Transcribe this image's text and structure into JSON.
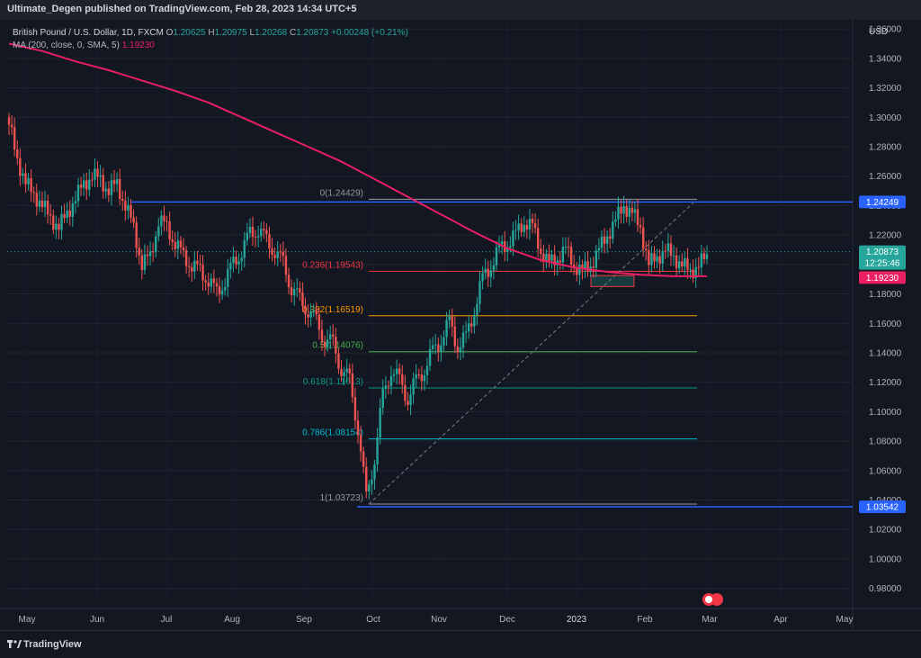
{
  "header": {
    "publisher": "Ultimate_Degen published on TradingView.com, Feb 28, 2023 14:34 UTC+5"
  },
  "legend": {
    "symbol": "British Pound / U.S. Dollar, 1D, FXCM",
    "ohlc": [
      {
        "k": "O",
        "v": "1.20625"
      },
      {
        "k": "H",
        "v": "1.20975"
      },
      {
        "k": "L",
        "v": "1.20268"
      },
      {
        "k": "C",
        "v": "1.20873"
      }
    ],
    "change": "+0.00248 (+0.21%)",
    "ma_label": "MA (200, close, 0, SMA, 5)",
    "ma_value": "1.19230"
  },
  "price_axis": {
    "currency": "USD",
    "ticks": [
      "1.36000",
      "1.34000",
      "1.32000",
      "1.30000",
      "1.28000",
      "1.26000",
      "1.24000",
      "1.22000",
      "1.20000",
      "1.18000",
      "1.16000",
      "1.14000",
      "1.12000",
      "1.10000",
      "1.08000",
      "1.06000",
      "1.04000",
      "1.02000",
      "1.00000",
      "0.98000"
    ],
    "badges": {
      "resistance": "1.24249",
      "last_price": "1.20873",
      "countdown": "12:25:46",
      "ma": "1.19230",
      "support": "1.03542"
    }
  },
  "time_axis": {
    "labels": [
      "May",
      "Jun",
      "Jul",
      "Aug",
      "Sep",
      "Oct",
      "Nov",
      "Dec",
      "2023",
      "Feb",
      "Mar",
      "Apr",
      "May"
    ]
  },
  "fib": [
    {
      "label": "0(1.24429)",
      "color": "#9598a1"
    },
    {
      "label": "0.236(1.19543)",
      "color": "#f23645"
    },
    {
      "label": "0.382(1.16519)",
      "color": "#ff9800"
    },
    {
      "label": "0.5(1.14076)",
      "color": "#4caf50"
    },
    {
      "label": "0.618(1.11613)",
      "color": "#089981"
    },
    {
      "label": "0.786(1.08154)",
      "color": "#00bcd4"
    },
    {
      "label": "1(1.03723)",
      "color": "#9598a1"
    }
  ],
  "chart_data": {
    "type": "candlestick",
    "symbol": "GBPUSD",
    "timeframe": "1D",
    "ylim": [
      0.97,
      1.365
    ],
    "resistance": 1.24249,
    "support": 1.03542,
    "last": 1.20873,
    "ma200": 1.1923,
    "fib_levels": [
      {
        "ratio": "0",
        "price": 1.24429
      },
      {
        "ratio": "0.236",
        "price": 1.19543
      },
      {
        "ratio": "0.382",
        "price": 1.16519
      },
      {
        "ratio": "0.5",
        "price": 1.14076
      },
      {
        "ratio": "0.618",
        "price": 1.11613
      },
      {
        "ratio": "0.786",
        "price": 1.08154
      },
      {
        "ratio": "1",
        "price": 1.03723
      }
    ],
    "close_path": [
      1.295,
      1.272,
      1.255,
      1.248,
      1.24,
      1.232,
      1.225,
      1.235,
      1.245,
      1.255,
      1.26,
      1.258,
      1.25,
      1.255,
      1.24,
      1.225,
      1.2,
      1.205,
      1.23,
      1.225,
      1.215,
      1.205,
      1.2,
      1.195,
      1.19,
      1.18,
      1.19,
      1.2,
      1.21,
      1.22,
      1.225,
      1.215,
      1.21,
      1.2,
      1.185,
      1.175,
      1.17,
      1.16,
      1.15,
      1.145,
      1.13,
      1.12,
      1.09,
      1.04,
      1.07,
      1.11,
      1.13,
      1.12,
      1.11,
      1.12,
      1.13,
      1.14,
      1.15,
      1.16,
      1.145,
      1.15,
      1.17,
      1.19,
      1.2,
      1.21,
      1.215,
      1.22,
      1.23,
      1.225,
      1.21,
      1.2,
      1.205,
      1.21,
      1.2,
      1.195,
      1.2,
      1.21,
      1.22,
      1.23,
      1.24,
      1.235,
      1.225,
      1.2,
      1.205,
      1.21,
      1.205,
      1.2,
      1.195,
      1.2,
      1.205
    ],
    "ma_path": [
      1.35,
      1.345,
      1.338,
      1.332,
      1.325,
      1.318,
      1.31,
      1.3,
      1.29,
      1.28,
      1.27,
      1.258,
      1.246,
      1.234,
      1.222,
      1.211,
      1.203,
      1.198,
      1.195,
      1.193,
      1.192,
      1.192
    ]
  }
}
